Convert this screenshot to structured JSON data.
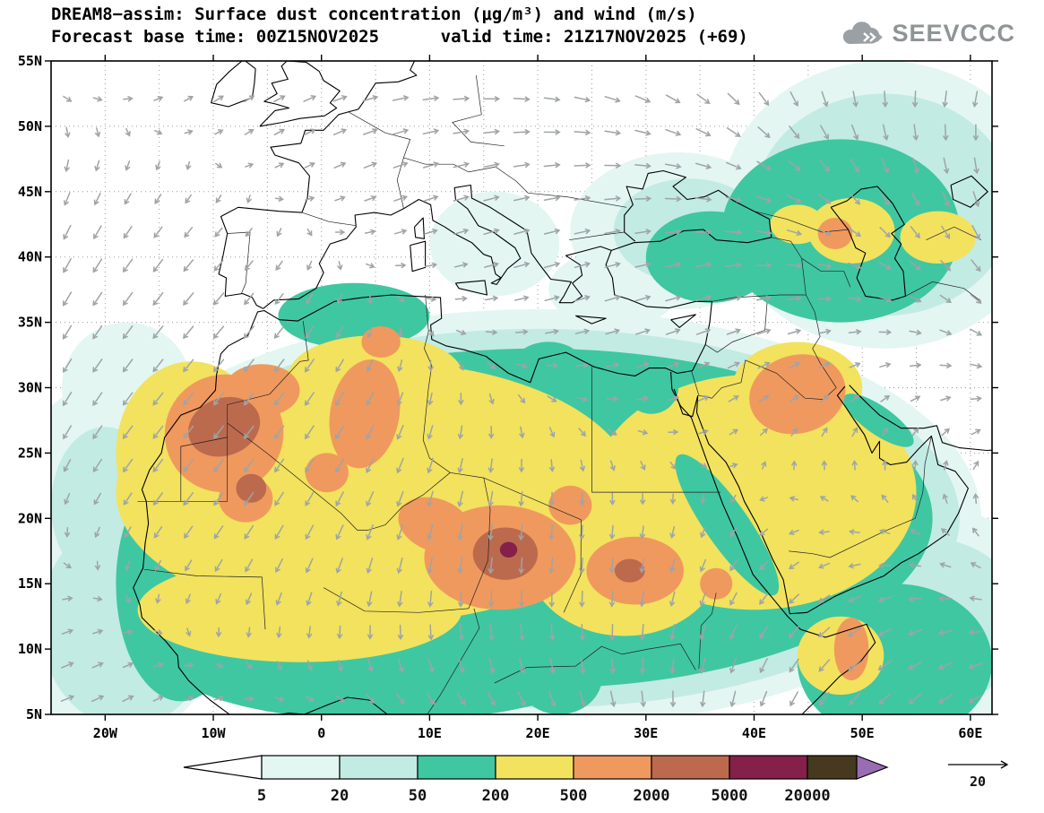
{
  "header": {
    "title": "DREAM8−assim: Surface dust concentration (μg/m³) and wind (m/s)",
    "subtitle": "Forecast base time: 00Z15NOV2025      valid time: 21Z17NOV2025 (+69)"
  },
  "logo": {
    "text": "SEEVCCC"
  },
  "chart_data": {
    "type": "heatmap",
    "title": "DREAM8−assim: Surface dust concentration (μg/m³) and wind (m/s)",
    "variable": "Surface dust concentration",
    "units": "μg/m³",
    "wind_units": "m/s",
    "forecast_base_time": "00Z15NOV2025",
    "valid_time": "21Z17NOV2025",
    "lead_hours": 69,
    "lon_range": [
      -25,
      62
    ],
    "lat_range": [
      5,
      55
    ],
    "grid": "dotted, every 5 degrees",
    "legend_position": "bottom",
    "x_ticks": [
      {
        "label": "20W",
        "lon": -20
      },
      {
        "label": "10W",
        "lon": -10
      },
      {
        "label": "0",
        "lon": 0
      },
      {
        "label": "10E",
        "lon": 10
      },
      {
        "label": "20E",
        "lon": 20
      },
      {
        "label": "30E",
        "lon": 30
      },
      {
        "label": "40E",
        "lon": 40
      },
      {
        "label": "50E",
        "lon": 50
      },
      {
        "label": "60E",
        "lon": 60
      }
    ],
    "y_ticks": [
      {
        "label": "5N",
        "lat": 5
      },
      {
        "label": "10N",
        "lat": 10
      },
      {
        "label": "15N",
        "lat": 15
      },
      {
        "label": "20N",
        "lat": 20
      },
      {
        "label": "25N",
        "lat": 25
      },
      {
        "label": "30N",
        "lat": 30
      },
      {
        "label": "35N",
        "lat": 35
      },
      {
        "label": "40N",
        "lat": 40
      },
      {
        "label": "45N",
        "lat": 45
      },
      {
        "label": "50N",
        "lat": 50
      },
      {
        "label": "55N",
        "lat": 55
      }
    ],
    "legend": {
      "boundaries": [
        "5",
        "20",
        "50",
        "200",
        "500",
        "2000",
        "5000",
        "20000"
      ],
      "under_color": "#ffffff",
      "bands": [
        "#e3f6f2",
        "#c2ebe3",
        "#3fc7a1",
        "#f2e25e",
        "#f0995e",
        "#bc6a4e",
        "#84204a"
      ],
      "over_band_color": "#46391e",
      "arrow_color": "#9a6cb4"
    },
    "wind_reference": {
      "value": "20"
    },
    "wind_arrow_color": "#9fa4a6",
    "dust_blobs": {
      "comment": "approximate contour regions read from map; each item = [lon, lat, rx_deg, ry_deg, rotation_deg]",
      "level_5_20": [
        [
          -19,
          13,
          10,
          10,
          0
        ],
        [
          -21,
          22,
          7,
          8,
          0
        ],
        [
          -18,
          30,
          6,
          5,
          0
        ],
        [
          20,
          20,
          41,
          16,
          0
        ],
        [
          52,
          44,
          15,
          11,
          0
        ],
        [
          33,
          42,
          10,
          6,
          0
        ],
        [
          16,
          41,
          6,
          4,
          0
        ],
        [
          27,
          37.5,
          6,
          3,
          0
        ],
        [
          56,
          12,
          12,
          9,
          0
        ]
      ],
      "level_20_50": [
        [
          -18,
          12,
          8,
          8,
          0
        ],
        [
          -20,
          21,
          5,
          6,
          0
        ],
        [
          20,
          20,
          39,
          14.5,
          0
        ],
        [
          52,
          44,
          12,
          8.5,
          0
        ],
        [
          34,
          42,
          7,
          4,
          0
        ],
        [
          56,
          12,
          9,
          6.5,
          0
        ]
      ],
      "level_50_200": [
        [
          -13,
          15,
          6,
          9,
          0
        ],
        [
          6,
          9,
          20,
          4.5,
          0
        ],
        [
          20,
          20,
          36.5,
          13,
          0
        ],
        [
          48,
          42,
          11,
          7,
          0
        ],
        [
          36,
          40,
          6,
          3.5,
          0
        ],
        [
          53,
          9,
          9,
          6,
          0
        ],
        [
          3,
          35.5,
          7,
          2.5,
          0
        ]
      ],
      "level_200_500": [
        [
          5,
          22,
          24,
          10,
          0
        ],
        [
          5,
          31,
          8,
          3,
          0
        ],
        [
          -12,
          25,
          7,
          7,
          0
        ],
        [
          -2,
          13,
          15,
          4,
          0
        ],
        [
          40,
          22,
          15,
          9,
          0
        ],
        [
          44,
          30,
          6,
          3.5,
          0
        ],
        [
          28,
          17,
          9,
          6,
          0
        ],
        [
          49,
          42,
          4,
          2.5,
          0
        ],
        [
          57,
          41.5,
          3.5,
          2,
          0
        ],
        [
          44,
          42.5,
          2.5,
          1.5,
          0
        ],
        [
          48,
          9.5,
          4,
          3,
          0
        ]
      ],
      "corridors_50_200": [
        [
          37.5,
          19.5,
          2,
          6.5,
          -35
        ],
        [
          51.5,
          27.5,
          1.3,
          3.2,
          -55
        ],
        [
          30.5,
          30,
          2.5,
          2,
          0
        ],
        [
          22,
          8,
          4,
          3,
          0
        ],
        [
          21,
          32,
          3,
          1.5,
          0
        ]
      ],
      "level_500_2000": [
        [
          -9,
          26.5,
          5.5,
          4.5,
          -25
        ],
        [
          -5.5,
          29.8,
          3.5,
          2,
          0
        ],
        [
          -7,
          21.5,
          2.5,
          1.8,
          0
        ],
        [
          4,
          28,
          3.2,
          4.2,
          10
        ],
        [
          5.5,
          33.5,
          1.8,
          1.2,
          0
        ],
        [
          0.5,
          23.5,
          2,
          1.5,
          0
        ],
        [
          16.5,
          17,
          7,
          4,
          0
        ],
        [
          10.5,
          19.5,
          3.5,
          2,
          20
        ],
        [
          23,
          21,
          2,
          1.5,
          0
        ],
        [
          29,
          16,
          4.5,
          2.6,
          0
        ],
        [
          36.5,
          15,
          1.5,
          1.2,
          0
        ],
        [
          44,
          29.5,
          4.5,
          3,
          -15
        ],
        [
          47.5,
          41.8,
          1.6,
          1.2,
          0
        ],
        [
          49,
          10,
          1.6,
          2.4,
          0
        ]
      ],
      "level_2000_5000": [
        [
          -9,
          27,
          3.4,
          2.2,
          -20
        ],
        [
          -6.5,
          22.3,
          1.4,
          1.1,
          0
        ],
        [
          17,
          17.3,
          3,
          2,
          0
        ],
        [
          28.5,
          16,
          1.4,
          0.9,
          0
        ]
      ],
      "level_5000_20000": [
        [
          17.3,
          17.6,
          0.8,
          0.6,
          0
        ]
      ]
    }
  }
}
